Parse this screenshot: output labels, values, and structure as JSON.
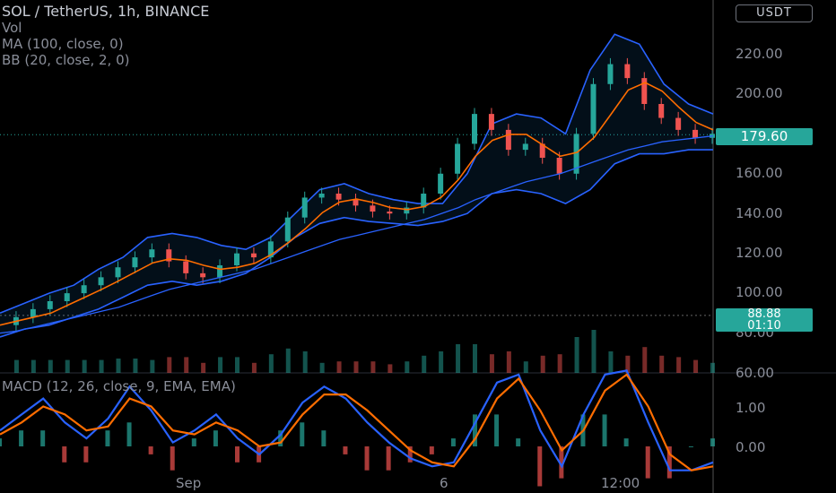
{
  "header": {
    "title": "SOL / TetherUS, 1h, BINANCE",
    "vol_label": "Vol",
    "ma_label": "MA (100, close, 0)",
    "bb_label": "BB (20, close, 2, 0)",
    "currency": "USDT"
  },
  "macd_legend": "MACD (12, 26, close, 9, EMA, EMA)",
  "price_axis": [
    "220.00",
    "200.00",
    "180.00",
    "160.00",
    "140.00",
    "120.00",
    "100.00",
    "80.00",
    "60.00"
  ],
  "macd_axis": [
    "1.00",
    "0.00"
  ],
  "time_axis": [
    "Sep",
    "6",
    "12:00"
  ],
  "last_price": "179.60",
  "crosshair": {
    "price": "88.88",
    "countdown": "01:10"
  },
  "colors": {
    "up": "#26a69a",
    "down": "#ef5350",
    "ma": "#2962ff",
    "bb_basis": "#ff6d00",
    "bb_band": "#2962ff",
    "macd": "#2962ff",
    "signal": "#ff6d00"
  },
  "chart_data": {
    "type": "line",
    "x_ticks": [
      "Sep",
      "6",
      "12:00"
    ],
    "price_range": [
      60,
      240
    ],
    "series": [
      {
        "name": "SOL / TetherUS, 1h, BINANCE",
        "values": [
          84,
          88,
          92,
          96,
          100,
          104,
          108,
          113,
          118,
          122,
          116,
          110,
          108,
          114,
          120,
          118,
          126,
          138,
          148,
          150,
          147,
          144,
          141,
          140,
          143,
          150,
          160,
          175,
          190,
          182,
          172,
          175,
          168,
          160,
          180,
          205,
          215,
          208,
          195,
          188,
          182,
          178,
          180
        ]
      },
      {
        "name": "MA (100, close, 0)",
        "values": [
          80,
          81,
          83,
          85,
          87,
          89,
          91,
          93,
          96,
          99,
          102,
          104,
          106,
          108,
          110,
          112,
          115,
          118,
          121,
          124,
          127,
          129,
          131,
          133,
          135,
          137,
          140,
          143,
          147,
          150,
          153,
          156,
          158,
          160,
          163,
          166,
          169,
          172,
          174,
          176,
          177,
          178,
          179
        ]
      }
    ],
    "bb": {
      "upper": [
        90,
        95,
        100,
        104,
        112,
        118,
        128,
        130,
        128,
        124,
        122,
        128,
        140,
        152,
        155,
        150,
        147,
        145,
        145,
        160,
        185,
        190,
        188,
        180,
        212,
        230,
        225,
        205,
        195,
        190
      ],
      "lower": [
        78,
        82,
        84,
        88,
        92,
        98,
        104,
        106,
        104,
        106,
        110,
        118,
        128,
        135,
        138,
        136,
        135,
        134,
        136,
        140,
        150,
        152,
        150,
        145,
        152,
        165,
        170,
        170,
        172,
        172
      ]
    },
    "macd": {
      "range": [
        -0.8,
        1.8
      ],
      "macd_line": [
        0.4,
        0.8,
        1.2,
        0.6,
        0.2,
        0.7,
        1.5,
        0.9,
        0.1,
        0.4,
        0.8,
        0.2,
        -0.2,
        0.3,
        1.1,
        1.5,
        1.2,
        0.6,
        0.1,
        -0.3,
        -0.5,
        -0.4,
        0.6,
        1.6,
        1.8,
        0.4,
        -0.5,
        0.8,
        1.8,
        1.9,
        0.6,
        -0.6,
        -0.6,
        -0.4
      ],
      "signal_line": [
        0.3,
        0.6,
        1.0,
        0.8,
        0.4,
        0.5,
        1.2,
        1.0,
        0.4,
        0.3,
        0.6,
        0.4,
        0.0,
        0.1,
        0.8,
        1.3,
        1.3,
        0.9,
        0.4,
        -0.1,
        -0.4,
        -0.5,
        0.2,
        1.2,
        1.7,
        0.9,
        -0.1,
        0.4,
        1.4,
        1.8,
        1.0,
        -0.2,
        -0.6,
        -0.5
      ]
    }
  }
}
